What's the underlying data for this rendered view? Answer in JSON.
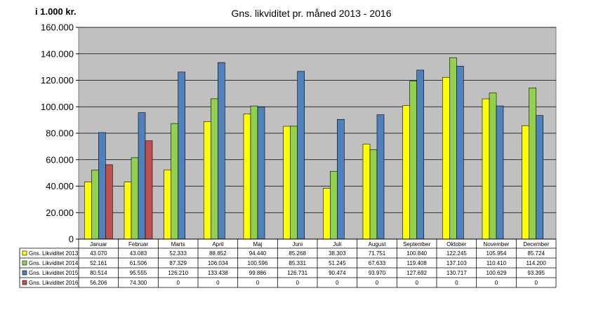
{
  "chart_data": {
    "type": "bar",
    "title": "Gns. likviditet pr. måned 2013 - 2016",
    "ylabel": "i 1.000 kr.",
    "ylim": [
      0,
      160000
    ],
    "yticks": [
      0,
      20000,
      40000,
      60000,
      80000,
      100000,
      120000,
      140000,
      160000
    ],
    "ytick_labels": [
      "0",
      "20.000",
      "40.000",
      "60.000",
      "80.000",
      "100.000",
      "120.000",
      "140.000",
      "160.000"
    ],
    "categories": [
      "Januar",
      "Februar",
      "Marts",
      "April",
      "Maj",
      "Juni",
      "Juli",
      "August",
      "September",
      "Oktober",
      "November",
      "December"
    ],
    "grid": true,
    "legend": "data-table",
    "colors": {
      "plot_bg": "#c0c0c0"
    },
    "series": [
      {
        "name": "Gns. Likviditet 2013",
        "color": "#ffff00",
        "values": [
          43070,
          43083,
          52333,
          88852,
          94440,
          85268,
          38303,
          71751,
          100840,
          122245,
          105954,
          85724
        ],
        "labels": [
          "43.070",
          "43.083",
          "52.333",
          "88.852",
          "94.440",
          "85.268",
          "38.303",
          "71.751",
          "100.840",
          "122.245",
          "105.954",
          "85.724"
        ]
      },
      {
        "name": "Gns. Likviditet 2014",
        "color": "#92d050",
        "values": [
          52161,
          61506,
          87329,
          106034,
          100596,
          85331,
          51245,
          67633,
          119408,
          137103,
          110410,
          114200
        ],
        "labels": [
          "52.161",
          "61.506",
          "87.329",
          "106.034",
          "100.596",
          "85.331",
          "51.245",
          "67.633",
          "119.408",
          "137.103",
          "110.410",
          "114.200"
        ]
      },
      {
        "name": "Gns. Likviditet 2015",
        "color": "#4f81bd",
        "values": [
          80514,
          95555,
          126210,
          133438,
          99886,
          126731,
          90474,
          93970,
          127692,
          130717,
          100629,
          93395
        ],
        "labels": [
          "80.514",
          "95.555",
          "126.210",
          "133.438",
          "99.886",
          "126.731",
          "90.474",
          "93.970",
          "127.692",
          "130.717",
          "100.629",
          "93.395"
        ]
      },
      {
        "name": "Gns. Likviditet 2016",
        "color": "#c0504d",
        "values": [
          56206,
          74300,
          0,
          0,
          0,
          0,
          0,
          0,
          0,
          0,
          0,
          0
        ],
        "labels": [
          "56.206",
          "74.300",
          "0",
          "0",
          "0",
          "0",
          "0",
          "0",
          "0",
          "0",
          "0",
          "0"
        ]
      }
    ]
  }
}
